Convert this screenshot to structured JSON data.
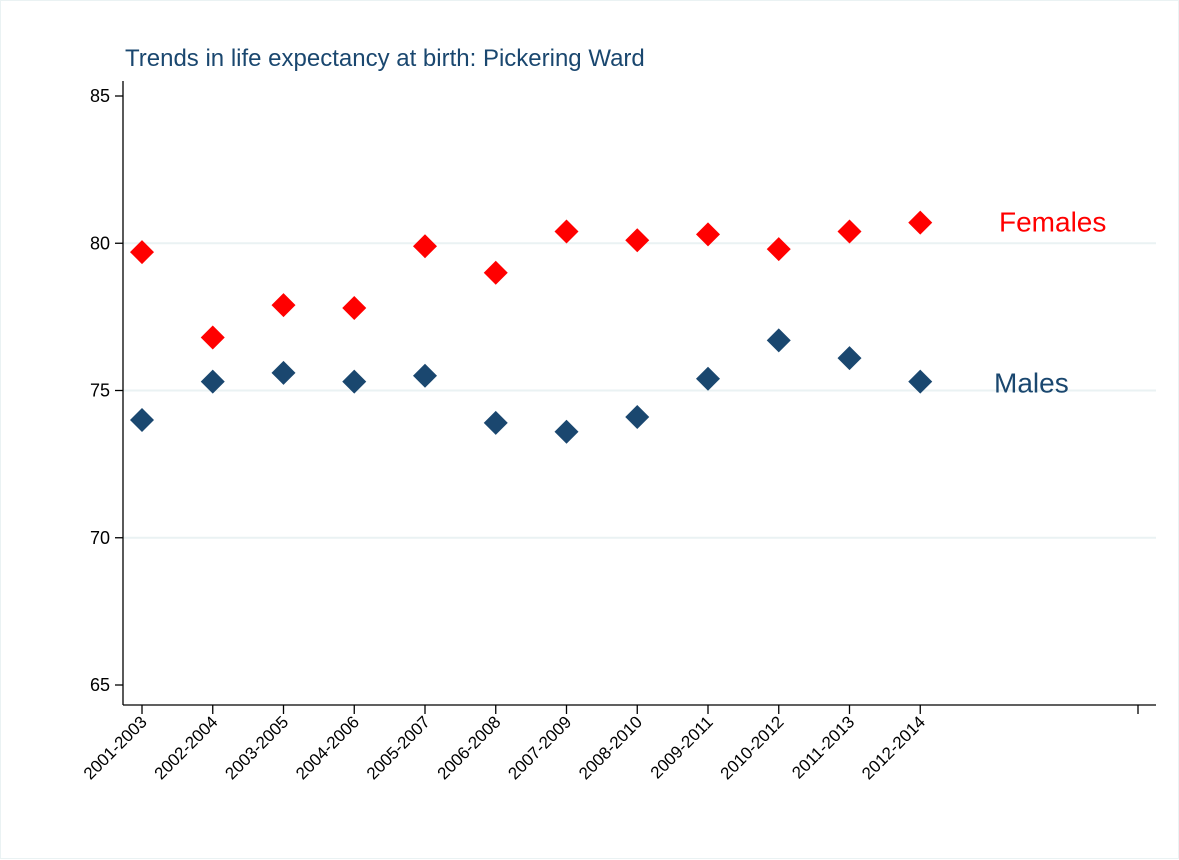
{
  "chart_data": {
    "type": "scatter",
    "title": "Trends in life expectancy at birth: Pickering Ward",
    "xlabel": "",
    "ylabel": "",
    "categories": [
      "2001-2003",
      "2002-2004",
      "2003-2005",
      "2004-2006",
      "2005-2007",
      "2006-2008",
      "2007-2009",
      "2008-2010",
      "2009-2011",
      "2010-2012",
      "2011-2013",
      "2012-2014",
      ""
    ],
    "ylim": [
      65,
      85
    ],
    "yticks": [
      "65",
      "70",
      "75",
      "80",
      "85"
    ],
    "grid": true,
    "marker": "diamond",
    "series": [
      {
        "name": "Females",
        "color": "#ff0000",
        "values": [
          79.7,
          76.8,
          77.9,
          77.8,
          79.9,
          79.0,
          80.4,
          80.1,
          80.3,
          79.8,
          80.4,
          80.7
        ]
      },
      {
        "name": "Males",
        "color": "#1a476f",
        "values": [
          74.0,
          75.3,
          75.6,
          75.3,
          75.5,
          73.9,
          73.6,
          74.1,
          75.4,
          76.7,
          76.1,
          75.3
        ]
      }
    ]
  }
}
